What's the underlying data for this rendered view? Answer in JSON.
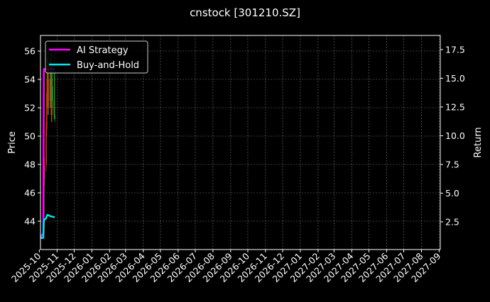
{
  "chart_data": {
    "type": "line",
    "title": "cnstock [301210.SZ]",
    "ylabel": "Price",
    "ylabel_right": "Return",
    "xlim": [
      "2025-10-03",
      "2027-09-03"
    ],
    "ylim": [
      42,
      57.1
    ],
    "ylim_right": [
      0.09,
      18.73
    ],
    "grid": true,
    "legend_position": "top-left",
    "x_ticks": [
      "2025-10",
      "2025-11",
      "2025-12",
      "2026-01",
      "2026-02",
      "2026-03",
      "2026-04",
      "2026-05",
      "2026-06",
      "2026-07",
      "2026-08",
      "2026-09",
      "2026-10",
      "2026-11",
      "2026-12",
      "2027-01",
      "2027-02",
      "2027-03",
      "2027-04",
      "2027-05",
      "2027-06",
      "2027-07",
      "2027-08",
      "2027-09"
    ],
    "y_ticks": [
      44,
      46,
      48,
      50,
      52,
      54,
      56
    ],
    "y_ticks_right": [
      "2.5",
      "5.0",
      "7.5",
      "10.0",
      "12.5",
      "15.0",
      "17.5"
    ],
    "candles": [
      {
        "date": "2025-10-09",
        "open": 44,
        "high": 47.5,
        "low": 43.5,
        "close": 47
      },
      {
        "date": "2025-10-10",
        "open": 47,
        "high": 48.5,
        "low": 46.5,
        "close": 48
      },
      {
        "date": "2025-10-13",
        "open": 48,
        "high": 51,
        "low": 47.5,
        "close": 50.5
      },
      {
        "date": "2025-10-14",
        "open": 50.5,
        "high": 54,
        "low": 50,
        "close": 53
      },
      {
        "date": "2025-10-15",
        "open": 53,
        "high": 55.5,
        "low": 52,
        "close": 54.5
      },
      {
        "date": "2025-10-16",
        "open": 54.5,
        "high": 56,
        "low": 51.5,
        "close": 52
      },
      {
        "date": "2025-10-17",
        "open": 52,
        "high": 55,
        "low": 51.5,
        "close": 54
      },
      {
        "date": "2025-10-20",
        "open": 54,
        "high": 55.5,
        "low": 52,
        "close": 52.5
      },
      {
        "date": "2025-10-21",
        "open": 52.5,
        "high": 55,
        "low": 52,
        "close": 54.5
      },
      {
        "date": "2025-10-22",
        "open": 54.5,
        "high": 56,
        "low": 51,
        "close": 51.5
      },
      {
        "date": "2025-10-23",
        "open": 51.5,
        "high": 54,
        "low": 51,
        "close": 53.5
      },
      {
        "date": "2025-10-24",
        "open": 53.5,
        "high": 55,
        "low": 52,
        "close": 52.5
      },
      {
        "date": "2025-10-27",
        "open": 52.5,
        "high": 56,
        "low": 51.2,
        "close": 51.5
      },
      {
        "date": "2025-10-28",
        "open": 51.5,
        "high": 54.5,
        "low": 51,
        "close": 51.2
      }
    ],
    "series": [
      {
        "name": "AI Strategy",
        "color": "#ff00ff",
        "axis": "right",
        "x": [
          "2025-10-03",
          "2025-10-08",
          "2025-10-09",
          "2025-10-13",
          "2025-10-20",
          "2025-10-28"
        ],
        "y": [
          1.2,
          1.5,
          15.8,
          15.8,
          15.8,
          15.8
        ]
      },
      {
        "name": "Buy-and-Hold",
        "color": "#00e5ee",
        "axis": "right",
        "x": [
          "2025-10-03",
          "2025-10-08",
          "2025-10-09",
          "2025-10-10",
          "2025-10-13",
          "2025-10-14",
          "2025-10-15",
          "2025-10-16",
          "2025-10-20",
          "2025-10-24",
          "2025-10-28"
        ],
        "y": [
          1.1,
          1.1,
          2.6,
          2.7,
          2.8,
          3.0,
          3.1,
          3.1,
          3.0,
          2.95,
          2.9
        ]
      }
    ],
    "up_color": "#e8251a",
    "down_color": "#1fa01f"
  }
}
